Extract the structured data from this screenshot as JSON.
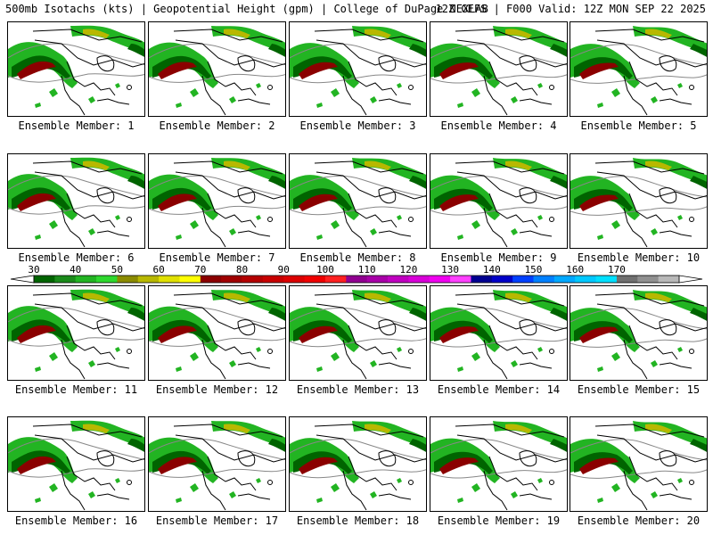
{
  "header": {
    "title": "500mb Isotachs (kts) | Geopotential Height (gpm) | College of DuPage NEXLAB",
    "valid": "12Z GEFS | F000 Valid: 12Z MON SEP 22 2025"
  },
  "member_label_prefix": "Ensemble Member:",
  "members": [
    "1",
    "2",
    "3",
    "4",
    "5",
    "6",
    "7",
    "8",
    "9",
    "10",
    "11",
    "12",
    "13",
    "14",
    "15",
    "16",
    "17",
    "18",
    "19",
    "20"
  ],
  "colorbar": {
    "ticks": [
      "30",
      "40",
      "50",
      "60",
      "70",
      "80",
      "90",
      "100",
      "110",
      "120",
      "130",
      "140",
      "150",
      "160",
      "170"
    ],
    "colors": [
      "#006400",
      "#1a8a1a",
      "#22b422",
      "#2ed82e",
      "#8b8b00",
      "#b8b800",
      "#e0e000",
      "#ffff00",
      "#8b0000",
      "#a00000",
      "#b40000",
      "#c80000",
      "#dc0000",
      "#f00000",
      "#ff2020",
      "#900090",
      "#a800a8",
      "#c000c0",
      "#d800d8",
      "#f000f0",
      "#ff40ff",
      "#000090",
      "#0000c8",
      "#0040ff",
      "#0080ff",
      "#00a8ff",
      "#00c8ff",
      "#00e0ff",
      "#707070",
      "#909090",
      "#b8b8b8"
    ]
  },
  "colors": {
    "land_outline": "#000000",
    "height_contour": "#888888",
    "isotach_light": "#22b422",
    "isotach_dark": "#006400",
    "jet_core": "#8b0000",
    "isotach_yellow": "#b8b800"
  }
}
